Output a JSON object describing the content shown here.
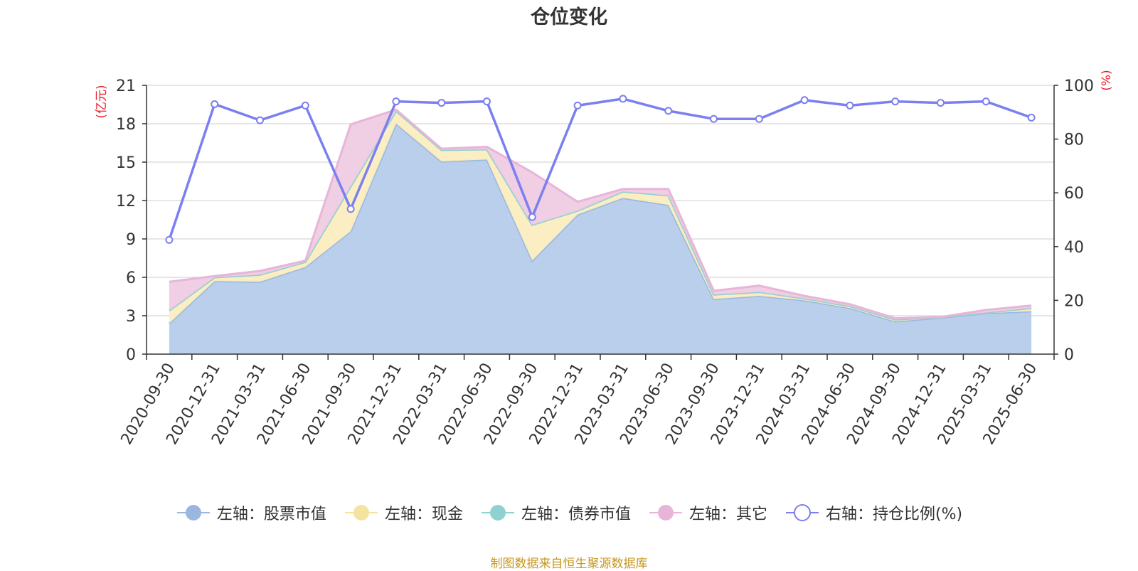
{
  "chart_data": {
    "type": "area",
    "title": "仓位变化",
    "left_axis_unit": "(亿元)",
    "right_axis_unit": "(%)",
    "ylim_left": [
      0,
      21
    ],
    "yticks_left": [
      0,
      3,
      6,
      9,
      12,
      15,
      18,
      21
    ],
    "ylim_right": [
      0,
      100
    ],
    "yticks_right": [
      0,
      20,
      40,
      60,
      80,
      100
    ],
    "grid": true,
    "legend_position": "bottom",
    "categories": [
      "2020-09-30",
      "2020-12-31",
      "2021-03-31",
      "2021-06-30",
      "2021-09-30",
      "2021-12-31",
      "2022-03-31",
      "2022-06-30",
      "2022-09-30",
      "2022-12-31",
      "2023-03-31",
      "2023-06-30",
      "2023-09-30",
      "2023-12-31",
      "2024-03-31",
      "2024-06-30",
      "2024-09-30",
      "2024-12-31",
      "2025-03-31",
      "2025-06-30"
    ],
    "series": [
      {
        "name": "左轴：股票市值",
        "axis": "left",
        "type": "stacked-area",
        "color": "#9bb7e0",
        "fill": "#b6cceb",
        "values": [
          2.4,
          5.7,
          5.65,
          6.8,
          9.6,
          18.0,
          15.05,
          15.2,
          7.3,
          10.9,
          12.2,
          11.65,
          4.3,
          4.55,
          4.2,
          3.6,
          2.55,
          2.85,
          3.2,
          3.35
        ]
      },
      {
        "name": "左轴：现金",
        "axis": "left",
        "type": "stacked-area",
        "color": "#f5e3a0",
        "fill": "#faedbf",
        "values": [
          1.0,
          0.3,
          0.55,
          0.4,
          3.5,
          1.0,
          0.9,
          0.8,
          2.8,
          0.3,
          0.5,
          0.75,
          0.35,
          0.3,
          0.15,
          0.15,
          0.15,
          0.05,
          0.05,
          0.25
        ]
      },
      {
        "name": "左轴：债券市值",
        "axis": "left",
        "type": "stacked-area",
        "color": "#8fd1d1",
        "fill": "#a6dcdc",
        "values": [
          0,
          0,
          0,
          0,
          0,
          0,
          0,
          0,
          0,
          0,
          0,
          0,
          0,
          0,
          0,
          0,
          0,
          0,
          0,
          0
        ]
      },
      {
        "name": "左轴：其它",
        "axis": "left",
        "type": "stacked-area",
        "color": "#e8b5d8",
        "fill": "#efcbe3",
        "values": [
          2.25,
          0.1,
          0.3,
          0.1,
          4.85,
          0.1,
          0.1,
          0.2,
          4.1,
          0.7,
          0.2,
          0.5,
          0.3,
          0.5,
          0.2,
          0.15,
          0.1,
          0.0,
          0.2,
          0.2
        ]
      },
      {
        "name": "右轴：持仓比例(%)",
        "axis": "right",
        "type": "line",
        "color": "#7b7ff0",
        "values": [
          42.5,
          93.0,
          87.0,
          92.5,
          54.0,
          94.0,
          93.5,
          94.0,
          51.0,
          92.5,
          95.0,
          90.5,
          87.5,
          87.5,
          94.5,
          92.5,
          94.0,
          93.5,
          94.0,
          88.0
        ]
      }
    ]
  },
  "legend": [
    {
      "label": "左轴：股票市值",
      "marker": "filled-circle",
      "color": "#9bb7e0"
    },
    {
      "label": "左轴：现金",
      "marker": "filled-circle",
      "color": "#f5e3a0"
    },
    {
      "label": "左轴：债券市值",
      "marker": "filled-circle",
      "color": "#8fd1d1"
    },
    {
      "label": "左轴：其它",
      "marker": "filled-circle",
      "color": "#e8b5d8"
    },
    {
      "label": "右轴：持仓比例(%)",
      "marker": "hollow-circle",
      "color": "#7b7ff0"
    }
  ],
  "footer": "制图数据来自恒生聚源数据库"
}
